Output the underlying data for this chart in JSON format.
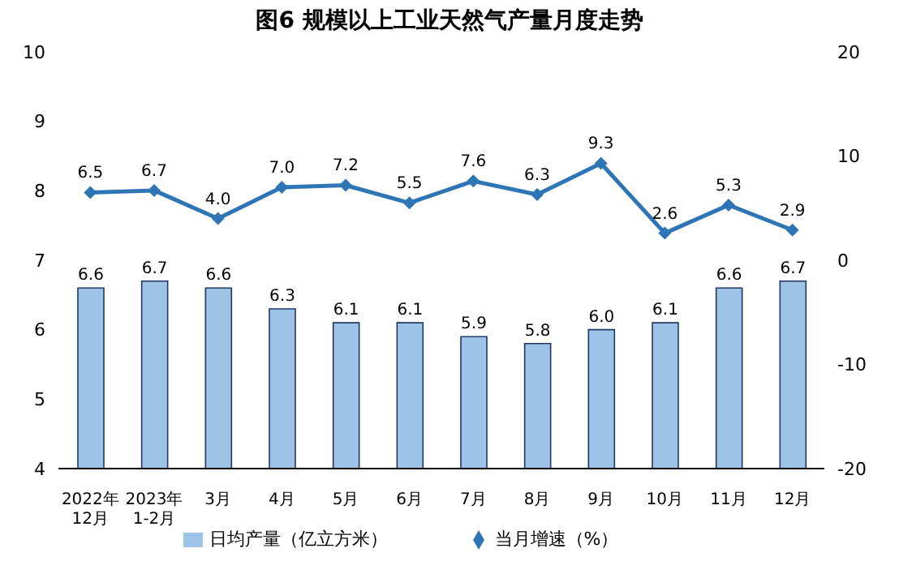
{
  "chart_data": {
    "type": "bar",
    "title": "图6  规模以上工业天然气产量月度走势",
    "categories": [
      "2022年\n12月",
      "2023年\n1-2月",
      "3月",
      "4月",
      "5月",
      "6月",
      "7月",
      "8月",
      "9月",
      "10月",
      "11月",
      "12月"
    ],
    "series": [
      {
        "name": "日均产量（亿立方米）",
        "color": "#9dc3e6",
        "values": [
          6.6,
          6.7,
          6.6,
          6.3,
          6.1,
          6.1,
          5.9,
          5.8,
          6.0,
          6.1,
          6.6,
          6.7
        ],
        "value_labels": [
          "6.6",
          "6.7",
          "6.6",
          "6.3",
          "6.1",
          "6.1",
          "5.9",
          "5.8",
          "6.0",
          "6.1",
          "6.6",
          "6.7"
        ]
      },
      {
        "name": "当月增速（%）",
        "type": "line",
        "axis": "y2",
        "color": "#2e75b6",
        "values": [
          6.5,
          6.7,
          4.0,
          7.0,
          7.2,
          5.5,
          7.6,
          6.3,
          9.3,
          2.6,
          5.3,
          2.9
        ],
        "value_labels": [
          "6.5",
          "6.7",
          "4.0",
          "7.0",
          "7.2",
          "5.5",
          "7.6",
          "6.3",
          "9.3",
          "2.6",
          "5.3",
          "2.9"
        ]
      }
    ],
    "ylim": [
      4,
      10
    ],
    "yticks": [
      4,
      5,
      6,
      7,
      8,
      9,
      10
    ],
    "y2lim": [
      -20,
      20
    ],
    "y2ticks": [
      -20,
      -10,
      0,
      10,
      20
    ],
    "grid": false,
    "legend": "bottom",
    "marker": "diamond",
    "line_style": "solid"
  }
}
